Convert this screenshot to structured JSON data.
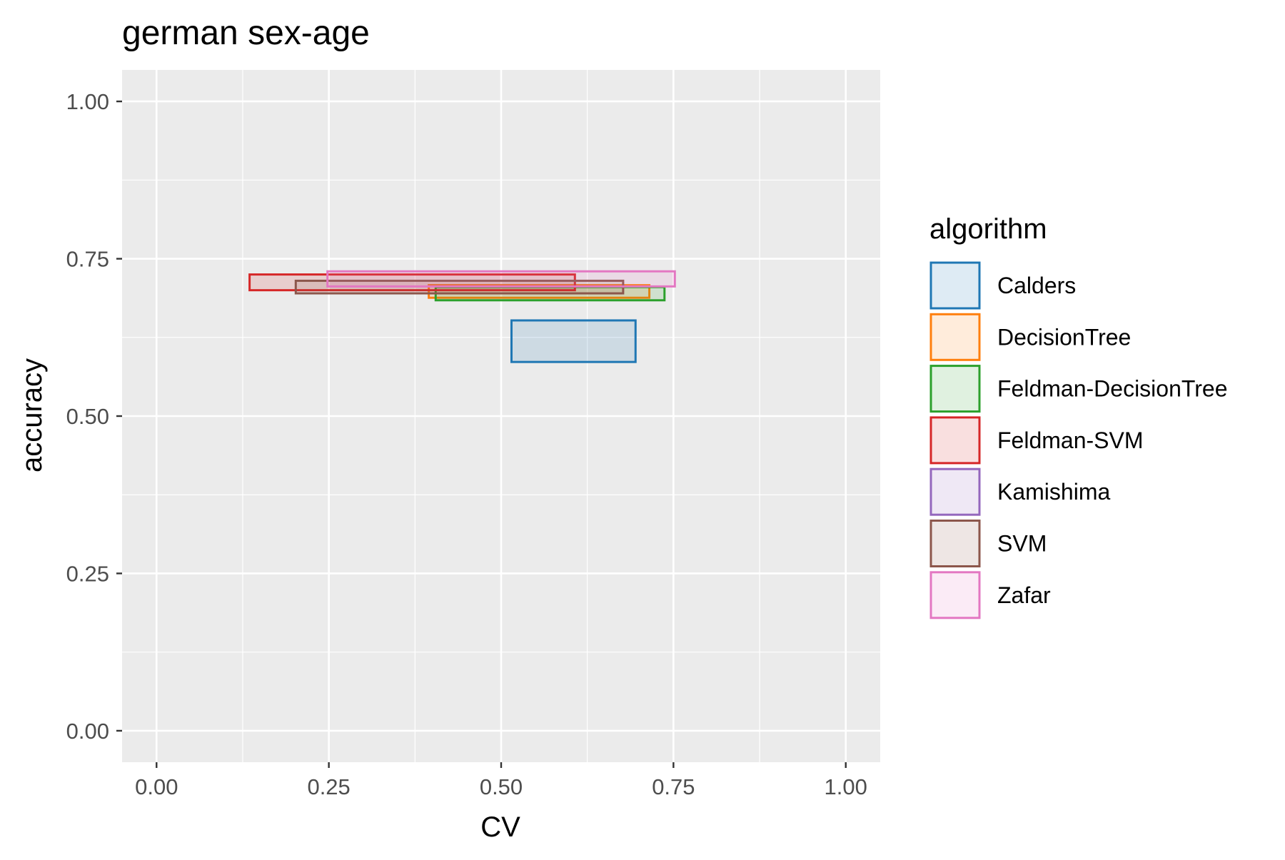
{
  "chart_data": {
    "type": "rect",
    "title": "german sex-age",
    "xlabel": "CV",
    "ylabel": "accuracy",
    "xlim": [
      -0.05,
      1.05
    ],
    "ylim": [
      -0.05,
      1.05
    ],
    "xticks": [
      "0.00",
      "0.25",
      "0.50",
      "0.75",
      "1.00"
    ],
    "yticks": [
      "0.00",
      "0.25",
      "0.50",
      "0.75",
      "1.00"
    ],
    "xtick_values": [
      0,
      0.25,
      0.5,
      0.75,
      1.0
    ],
    "ytick_values": [
      0,
      0.25,
      0.5,
      0.75,
      1.0
    ],
    "grid": true,
    "legend": {
      "title": "algorithm",
      "placement": "right"
    },
    "series": [
      {
        "name": "Calders",
        "color": "#1f77b4",
        "xmin": 0.515,
        "xmax": 0.695,
        "ymin": 0.586,
        "ymax": 0.652
      },
      {
        "name": "DecisionTree",
        "color": "#ff7f0e",
        "xmin": 0.395,
        "xmax": 0.715,
        "ymin": 0.688,
        "ymax": 0.708
      },
      {
        "name": "Feldman-DecisionTree",
        "color": "#2ca02c",
        "xmin": 0.405,
        "xmax": 0.737,
        "ymin": 0.684,
        "ymax": 0.705
      },
      {
        "name": "Feldman-SVM",
        "color": "#d62728",
        "xmin": 0.135,
        "xmax": 0.607,
        "ymin": 0.7,
        "ymax": 0.725
      },
      {
        "name": "Kamishima",
        "color": "#9467bd",
        "xmin": null,
        "xmax": null,
        "ymin": null,
        "ymax": null
      },
      {
        "name": "SVM",
        "color": "#8c564b",
        "xmin": 0.202,
        "xmax": 0.677,
        "ymin": 0.695,
        "ymax": 0.715
      },
      {
        "name": "Zafar",
        "color": "#e377c2",
        "xmin": 0.248,
        "xmax": 0.752,
        "ymin": 0.706,
        "ymax": 0.73
      }
    ]
  }
}
